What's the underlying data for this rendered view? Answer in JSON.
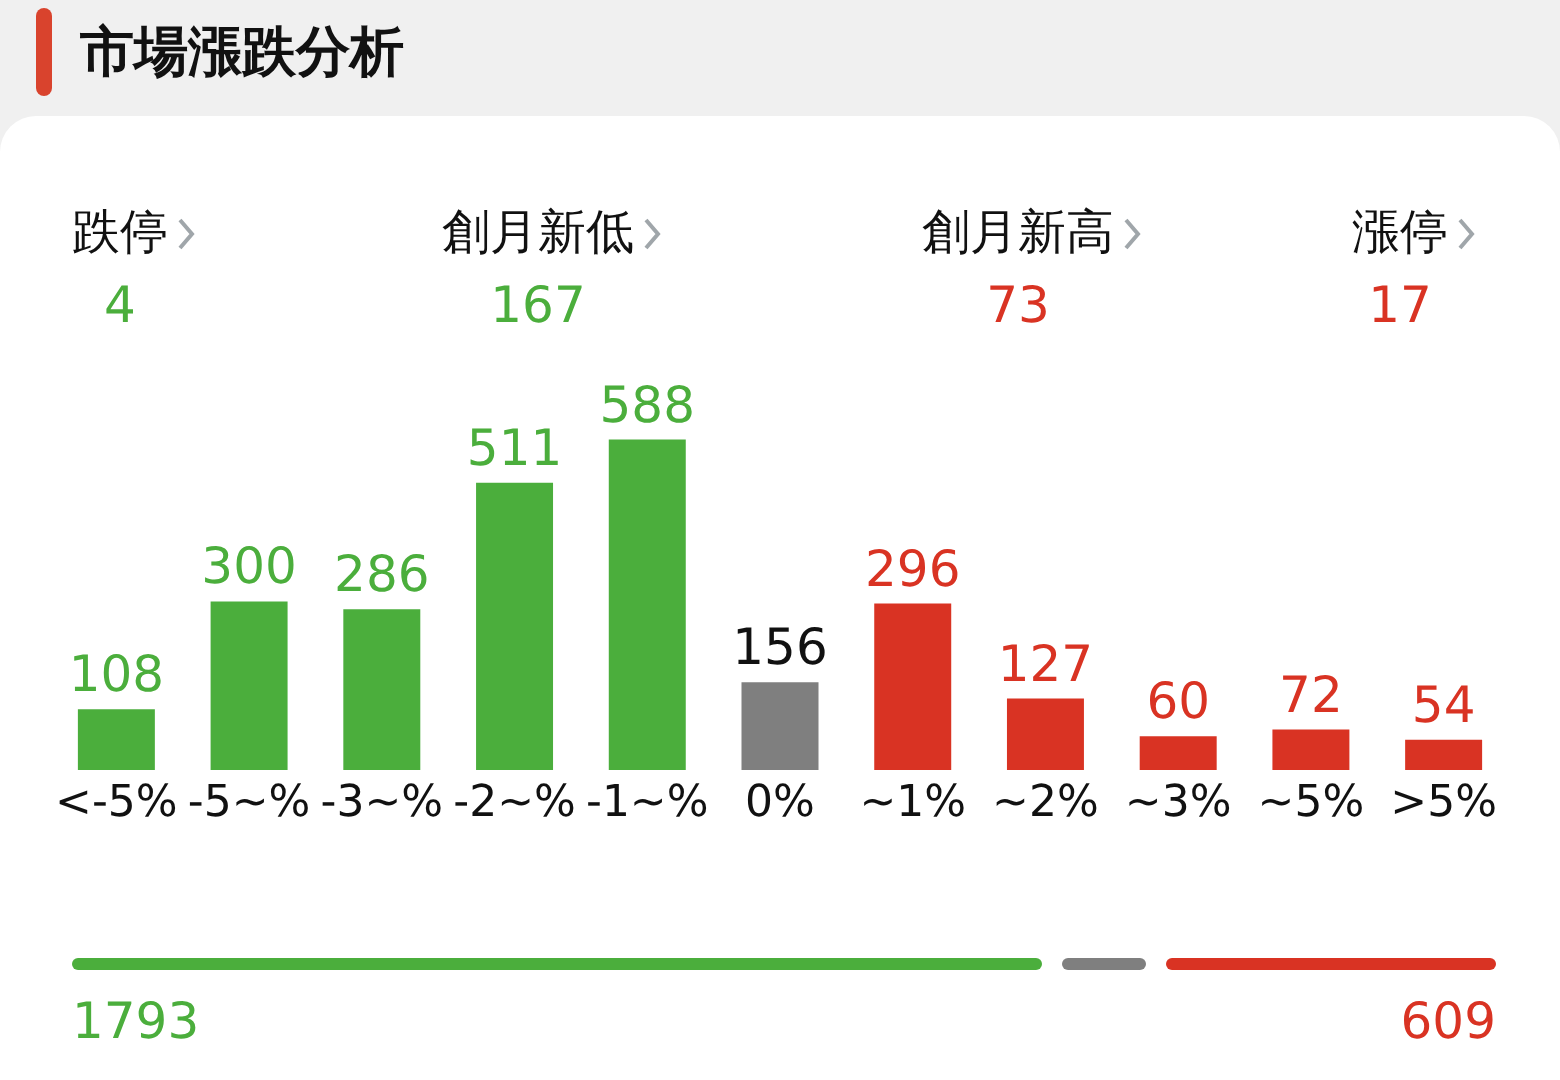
{
  "chart_data": {
    "type": "bar",
    "title": "市場漲跌分析",
    "annotations": [
      "跌停",
      "4",
      "創月新低",
      "167",
      "創月新高",
      "73",
      "漲停",
      "17",
      "1793",
      "609"
    ],
    "categories": [
      "<-5%",
      "-5~%",
      "-3~%",
      "-2~%",
      "-1~%",
      "0%",
      "~1%",
      "~2%",
      "~3%",
      "~5%",
      ">5%"
    ],
    "values": [
      108,
      300,
      286,
      511,
      588,
      156,
      296,
      127,
      60,
      72,
      54
    ],
    "colors": [
      "#4bae3c",
      "#4bae3c",
      "#4bae3c",
      "#4bae3c",
      "#4bae3c",
      "#7f7f7f",
      "#d93323",
      "#d93323",
      "#d93323",
      "#d93323",
      "#d93323"
    ],
    "data_labels": true,
    "tick_labels": "x"
  }
}
